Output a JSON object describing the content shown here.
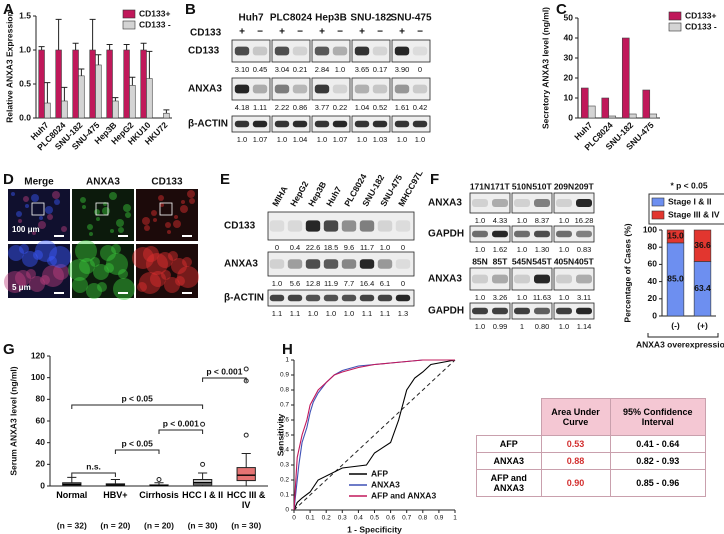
{
  "chart_data": [
    {
      "type": "bar",
      "panel": "A",
      "ylabel": "Relative ANXA3 Expression",
      "categories": [
        "Huh7",
        "PLC8024",
        "SNU-182",
        "SNU-475",
        "Hep3B",
        "HepG2",
        "HKU10",
        "HKU72"
      ],
      "series": [
        {
          "name": "CD133+",
          "color": "#c0185a",
          "values": [
            1,
            1,
            1,
            1,
            1,
            1,
            1,
            null
          ],
          "errors": [
            0.05,
            0.45,
            0.1,
            0.45,
            0.08,
            0.08,
            0.1,
            null
          ]
        },
        {
          "name": "CD133 -",
          "color": "#d4d4d4",
          "values": [
            0.22,
            0.25,
            0.62,
            0.78,
            0.25,
            0.48,
            0.58,
            0.07
          ],
          "errors": [
            0.3,
            0.2,
            0.1,
            0.15,
            0.05,
            0.12,
            0.4,
            0.05
          ]
        }
      ],
      "ylim": [
        0,
        1.5
      ],
      "yticks": [
        {
          "value": 0,
          "label": "0.0"
        },
        {
          "value": 0.5,
          "label": "0.5"
        },
        {
          "value": 1,
          "label": "1.0"
        },
        {
          "value": 1.5,
          "label": "1.5"
        }
      ],
      "legend": "upper right"
    },
    {
      "type": "bar",
      "panel": "C",
      "ylabel": "Secretory ANXA3 level (ng/ml)",
      "categories": [
        "Huh7",
        "PLC8024",
        "SNU-182",
        "SNU-475"
      ],
      "series": [
        {
          "name": "CD133+",
          "color": "#c0185a",
          "values": [
            15,
            10,
            40,
            14
          ]
        },
        {
          "name": "CD133 -",
          "color": "#d4d4d4",
          "values": [
            6,
            1,
            2,
            2
          ]
        }
      ],
      "ylim": [
        0,
        50
      ],
      "yticks": [
        0,
        10,
        20,
        30,
        40,
        50
      ],
      "legend": "upper right"
    },
    {
      "type": "stacked_bar",
      "panel": "F",
      "annotation": "* p < 0.05",
      "ylabel": "Percentage of Cases (%)",
      "xlabel": "ANXA3 overexpression",
      "categories": [
        "(-)",
        "(+)"
      ],
      "series": [
        {
          "name": "Stage I & II",
          "color": "#6d8ff0",
          "values": [
            85,
            63.4
          ],
          "value_labels": [
            "85.0",
            "63.4"
          ]
        },
        {
          "name": "Stage III & IV",
          "color": "#e2362f",
          "values": [
            15,
            36.6
          ],
          "value_labels": [
            "15.0",
            "36.6"
          ]
        }
      ],
      "ylim": [
        0,
        100
      ],
      "yticks": [
        0,
        20,
        40,
        60,
        80,
        100
      ],
      "legend": "upper center"
    },
    {
      "type": "box",
      "panel": "G",
      "ylabel": "Serum ANXA3 level (ng/ml)",
      "categories": [
        "Normal",
        "HBV+",
        "Cirrhosis",
        "HCC I & II",
        "HCC III & IV"
      ],
      "n_labels": [
        "(n = 32)",
        "(n = 20)",
        "(n = 20)",
        "(n = 30)",
        "(n = 30)"
      ],
      "boxes": [
        {
          "whislo": 0,
          "q1": 0.5,
          "med": 1.5,
          "q3": 3,
          "whishi": 8,
          "fliers": [],
          "color": "#9e9e9e"
        },
        {
          "whislo": 0,
          "q1": 0.5,
          "med": 1,
          "q3": 2,
          "whishi": 6,
          "fliers": [],
          "color": "#9e9e9e"
        },
        {
          "whislo": 0,
          "q1": 0,
          "med": 0.5,
          "q3": 1,
          "whishi": 3,
          "fliers": [
            6
          ],
          "color": "#9e9e9e"
        },
        {
          "whislo": 0,
          "q1": 1,
          "med": 3,
          "q3": 6,
          "whishi": 12,
          "fliers": [
            20,
            57
          ],
          "color": "#bdbdbd"
        },
        {
          "whislo": 0,
          "q1": 5,
          "med": 10,
          "q3": 17,
          "whishi": 30,
          "fliers": [
            47,
            97,
            108
          ],
          "color": "#e57373"
        }
      ],
      "annotations": [
        "p < 0.05",
        "n.s.",
        "p < 0.05",
        "p < 0.001",
        "p < 0.001"
      ],
      "ylim": [
        0,
        120
      ],
      "yticks": [
        0,
        20,
        40,
        60,
        80,
        100,
        120
      ]
    },
    {
      "type": "line",
      "panel": "H",
      "xlabel": "1 - Specificity",
      "ylabel": "Sensitivity",
      "series": [
        {
          "name": "AFP",
          "color": "#000000",
          "x": [
            0,
            0.02,
            0.05,
            0.1,
            0.15,
            0.3,
            0.45,
            0.5,
            0.6,
            0.65,
            0.7,
            0.75,
            0.8,
            0.85,
            1
          ],
          "values": [
            0,
            0.05,
            0.08,
            0.12,
            0.2,
            0.28,
            0.3,
            0.38,
            0.45,
            0.6,
            0.8,
            0.88,
            0.92,
            0.97,
            1
          ]
        },
        {
          "name": "ANXA3",
          "color": "#3f51b5",
          "x": [
            0,
            0.03,
            0.05,
            0.08,
            0.1,
            0.12,
            0.15,
            0.2,
            0.25,
            0.3,
            0.4,
            0.5,
            0.6,
            0.8,
            1
          ],
          "values": [
            0,
            0.3,
            0.45,
            0.55,
            0.65,
            0.72,
            0.78,
            0.85,
            0.9,
            0.93,
            0.96,
            0.97,
            0.98,
            1,
            1
          ]
        },
        {
          "name": "AFP and ANXA3",
          "color": "#c2185b",
          "x": [
            0,
            0.02,
            0.05,
            0.08,
            0.1,
            0.15,
            0.2,
            0.25,
            0.3,
            0.4,
            0.5,
            0.6,
            0.8,
            1
          ],
          "values": [
            0,
            0.35,
            0.5,
            0.6,
            0.7,
            0.8,
            0.85,
            0.9,
            0.92,
            0.95,
            0.97,
            0.98,
            1,
            1
          ]
        }
      ],
      "xlim": [
        0,
        1
      ],
      "ylim": [
        0,
        1
      ],
      "xticks": [
        0,
        0.1,
        0.2,
        0.3,
        0.4,
        0.5,
        0.6,
        0.7,
        0.8,
        0.9,
        1
      ],
      "yticks": [
        0,
        0.1,
        0.2,
        0.3,
        0.4,
        0.5,
        0.6,
        0.7,
        0.8,
        0.9,
        1
      ],
      "legend": "lower right"
    }
  ],
  "blot_b": {
    "panel": "B",
    "lines": [
      "Huh7",
      "PLC8024",
      "Hep3B",
      "SNU-182",
      "SNU-475"
    ],
    "condition": "CD133",
    "signs": [
      "+",
      "−"
    ],
    "rows": [
      {
        "label": "CD133",
        "numbers": [
          "3.10",
          "0.45",
          "3.04",
          "0.21",
          "2.84",
          "1.0",
          "3.65",
          "0.17",
          "3.90",
          "0"
        ]
      },
      {
        "label": "ANXA3",
        "numbers": [
          "4.18",
          "1.11",
          "2.22",
          "0.86",
          "3.77",
          "0.22",
          "1.04",
          "0.52",
          "1.61",
          "0.42"
        ]
      },
      {
        "label": "β-ACTIN",
        "numbers": [
          "1.0",
          "1.07",
          "1.0",
          "1.04",
          "1.0",
          "1.07",
          "1.0",
          "1.03",
          "1.0",
          "1.0"
        ]
      }
    ]
  },
  "images_d": {
    "panel": "D",
    "channels": [
      "Merge",
      "ANXA3",
      "CD133"
    ],
    "scale_bars": [
      "100 μm",
      "5 μm"
    ]
  },
  "blot_e": {
    "panel": "E",
    "lanes": [
      "MIHA",
      "HepG2",
      "Hep3B",
      "Huh7",
      "PLC8024",
      "SNU-182",
      "SNU-475",
      "MHCC97L"
    ],
    "rows": [
      {
        "label": "CD133",
        "numbers": [
          "0",
          "0.4",
          "22.6",
          "18.5",
          "9.6",
          "11.7",
          "1.0",
          "0"
        ]
      },
      {
        "label": "ANXA3",
        "numbers": [
          "1.0",
          "5.6",
          "12.8",
          "11.9",
          "7.7",
          "16.4",
          "6.1",
          "0"
        ]
      },
      {
        "label": "β-ACTIN",
        "numbers": [
          "1.1",
          "1.1",
          "1.0",
          "1.0",
          "1.0",
          "1.1",
          "1.1",
          "1.3"
        ]
      }
    ]
  },
  "blot_f": {
    "groups": [
      {
        "lanes": [
          "171N",
          "171T",
          "510N",
          "510T",
          "209N",
          "209T"
        ],
        "rows": [
          {
            "label": "ANXA3",
            "numbers": [
              "1.0",
              "4.33",
              "1.0",
              "8.37",
              "1.0",
              "16.28"
            ]
          },
          {
            "label": "GAPDH",
            "numbers": [
              "1.0",
              "1.62",
              "1.0",
              "1.30",
              "1.0",
              "0.83"
            ]
          }
        ]
      },
      {
        "lanes": [
          "85N",
          "85T",
          "545N",
          "545T",
          "405N",
          "405T"
        ],
        "rows": [
          {
            "label": "ANXA3",
            "numbers": [
              "1.0",
              "3.26",
              "1.0",
              "11.63",
              "1.0",
              "3.11"
            ]
          },
          {
            "label": "GAPDH",
            "numbers": [
              "1.0",
              "0.99",
              "1",
              "0.80",
              "1.0",
              "1.14"
            ]
          }
        ]
      }
    ]
  },
  "auc_table": {
    "columns": [
      "Area Under Curve",
      "95% Confidence Interval"
    ],
    "rows": [
      {
        "label": "AFP",
        "auc": "0.53",
        "ci": "0.41 - 0.64"
      },
      {
        "label": "ANXA3",
        "auc": "0.88",
        "ci": "0.82 - 0.93"
      },
      {
        "label": "AFP and ANXA3",
        "auc": "0.90",
        "ci": "0.85 - 0.96"
      }
    ]
  }
}
